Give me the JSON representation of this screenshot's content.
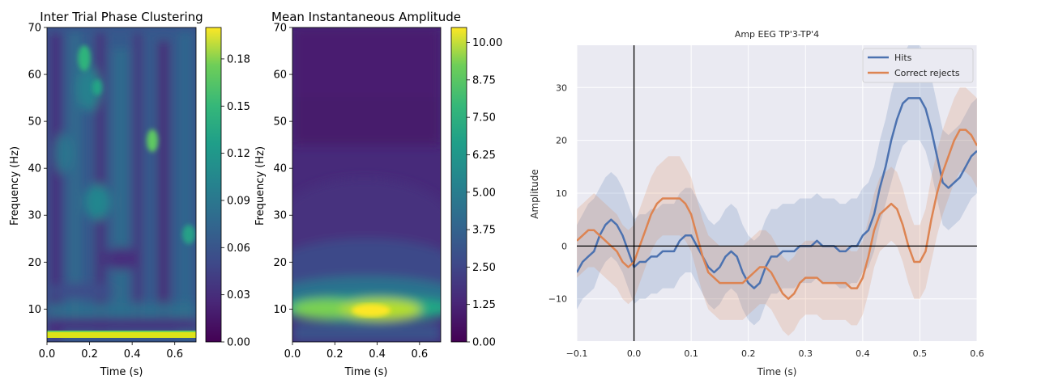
{
  "charts": [
    {
      "type": "heatmap",
      "title": "Inter Trial Phase Clustering",
      "xlabel": "Time (s)",
      "ylabel": "Frequency (Hz)",
      "xlim": [
        0.0,
        0.7
      ],
      "ylim": [
        3,
        70
      ],
      "xticks": [
        "0.0",
        "0.2",
        "0.4",
        "0.6"
      ],
      "yticks": [
        "10",
        "20",
        "30",
        "40",
        "50",
        "60",
        "70"
      ],
      "colorbar": {
        "range": [
          0.0,
          0.2
        ],
        "ticks": [
          "0.00",
          "0.03",
          "0.06",
          "0.09",
          "0.12",
          "0.15",
          "0.18"
        ]
      },
      "features": [
        {
          "t": 0.35,
          "f": 3.5,
          "value": 0.19
        },
        {
          "t": 0.5,
          "f": 46,
          "value": 0.14
        },
        {
          "t": 0.2,
          "f": 9,
          "value": 0.08
        },
        {
          "t": 0.1,
          "f": 18,
          "value": 0.06
        },
        {
          "t": 0.25,
          "f": 57,
          "value": 0.09
        }
      ]
    },
    {
      "type": "heatmap",
      "title": "Mean Instantaneous Amplitude",
      "xlabel": "Time (s)",
      "ylabel": "Frequency (Hz)",
      "xlim": [
        0.0,
        0.7
      ],
      "ylim": [
        3,
        70
      ],
      "xticks": [
        "0.0",
        "0.2",
        "0.4",
        "0.6"
      ],
      "yticks": [
        "10",
        "20",
        "30",
        "40",
        "50",
        "60",
        "70"
      ],
      "colorbar": {
        "range": [
          0.0,
          10.5
        ],
        "ticks": [
          "0.00",
          "1.25",
          "2.50",
          "3.75",
          "5.00",
          "6.25",
          "7.50",
          "8.75",
          "10.00"
        ]
      },
      "features": [
        {
          "t": 0.38,
          "f": 9.5,
          "value": 10.2
        },
        {
          "t": 0.1,
          "f": 10,
          "value": 6.5
        },
        {
          "t": 0.35,
          "f": 20,
          "value": 2.5
        },
        {
          "t": 0.35,
          "f": 50,
          "value": 0.6
        }
      ]
    },
    {
      "type": "line",
      "title": "Amp EEG TP'3-TP'4",
      "xlabel": "Time (s)",
      "ylabel": "Amplitude",
      "xlim": [
        -0.1,
        0.6
      ],
      "ylim": [
        -18,
        38
      ],
      "xticks": [
        "−0.1",
        "0.0",
        "0.1",
        "0.2",
        "0.3",
        "0.4",
        "0.5",
        "0.6"
      ],
      "yticks": [
        "−10",
        "0",
        "10",
        "20",
        "30"
      ],
      "grid": true,
      "legend_position": "top-right",
      "series": [
        {
          "name": "Hits",
          "color": "#4c72b0",
          "x": [
            -0.1,
            -0.09,
            -0.08,
            -0.07,
            -0.06,
            -0.05,
            -0.04,
            -0.03,
            -0.02,
            -0.01,
            0.0,
            0.01,
            0.02,
            0.03,
            0.04,
            0.05,
            0.06,
            0.07,
            0.08,
            0.09,
            0.1,
            0.11,
            0.12,
            0.13,
            0.14,
            0.15,
            0.16,
            0.17,
            0.18,
            0.19,
            0.2,
            0.21,
            0.22,
            0.23,
            0.24,
            0.25,
            0.26,
            0.27,
            0.28,
            0.29,
            0.3,
            0.31,
            0.32,
            0.33,
            0.34,
            0.35,
            0.36,
            0.37,
            0.38,
            0.39,
            0.4,
            0.41,
            0.42,
            0.43,
            0.44,
            0.45,
            0.46,
            0.47,
            0.48,
            0.49,
            0.5,
            0.51,
            0.52,
            0.53,
            0.54,
            0.55,
            0.56,
            0.57,
            0.58,
            0.59,
            0.6
          ],
          "y": [
            -5,
            -3,
            -2,
            -1,
            2,
            4,
            5,
            4,
            2,
            -1,
            -4,
            -3,
            -3,
            -2,
            -2,
            -1,
            -1,
            -1,
            1,
            2,
            2,
            0,
            -2,
            -4,
            -5,
            -4,
            -2,
            -1,
            -2,
            -5,
            -7,
            -8,
            -7,
            -4,
            -2,
            -2,
            -1,
            -1,
            -1,
            0,
            0,
            0,
            1,
            0,
            0,
            0,
            -1,
            -1,
            0,
            0,
            2,
            3,
            6,
            11,
            15,
            20,
            24,
            27,
            28,
            28,
            28,
            26,
            22,
            17,
            12,
            11,
            12,
            13,
            15,
            17,
            18
          ],
          "ci_upper": [
            4,
            6,
            8,
            9,
            11,
            13,
            14,
            13,
            11,
            8,
            5,
            6,
            6,
            7,
            7,
            8,
            8,
            8,
            10,
            11,
            11,
            9,
            7,
            5,
            4,
            5,
            7,
            8,
            7,
            4,
            2,
            1,
            2,
            5,
            7,
            7,
            8,
            8,
            8,
            9,
            9,
            9,
            10,
            9,
            9,
            9,
            8,
            8,
            9,
            9,
            11,
            12,
            15,
            20,
            24,
            29,
            33,
            36,
            38,
            38,
            38,
            36,
            32,
            27,
            22,
            21,
            22,
            23,
            25,
            27,
            28
          ],
          "ci_lower": [
            -12,
            -10,
            -9,
            -8,
            -5,
            -3,
            -2,
            -3,
            -5,
            -8,
            -11,
            -10,
            -10,
            -9,
            -9,
            -8,
            -8,
            -8,
            -6,
            -5,
            -5,
            -7,
            -9,
            -11,
            -12,
            -11,
            -9,
            -8,
            -9,
            -12,
            -14,
            -15,
            -14,
            -11,
            -9,
            -9,
            -8,
            -8,
            -8,
            -7,
            -7,
            -7,
            -6,
            -7,
            -7,
            -7,
            -8,
            -8,
            -7,
            -7,
            -5,
            -4,
            -1,
            4,
            8,
            12,
            16,
            19,
            20,
            20,
            20,
            18,
            14,
            9,
            4,
            3,
            4,
            5,
            7,
            9,
            10
          ]
        },
        {
          "name": "Correct rejects",
          "color": "#dd8452",
          "x": [
            -0.1,
            -0.09,
            -0.08,
            -0.07,
            -0.06,
            -0.05,
            -0.04,
            -0.03,
            -0.02,
            -0.01,
            0.0,
            0.01,
            0.02,
            0.03,
            0.04,
            0.05,
            0.06,
            0.07,
            0.08,
            0.09,
            0.1,
            0.11,
            0.12,
            0.13,
            0.14,
            0.15,
            0.16,
            0.17,
            0.18,
            0.19,
            0.2,
            0.21,
            0.22,
            0.23,
            0.24,
            0.25,
            0.26,
            0.27,
            0.28,
            0.29,
            0.3,
            0.31,
            0.32,
            0.33,
            0.34,
            0.35,
            0.36,
            0.37,
            0.38,
            0.39,
            0.4,
            0.41,
            0.42,
            0.43,
            0.44,
            0.45,
            0.46,
            0.47,
            0.48,
            0.49,
            0.5,
            0.51,
            0.52,
            0.53,
            0.54,
            0.55,
            0.56,
            0.57,
            0.58,
            0.59,
            0.6
          ],
          "y": [
            1,
            2,
            3,
            3,
            2,
            1,
            0,
            -1,
            -3,
            -4,
            -3,
            0,
            3,
            6,
            8,
            9,
            9,
            9,
            9,
            8,
            6,
            2,
            -2,
            -5,
            -6,
            -7,
            -7,
            -7,
            -7,
            -7,
            -6,
            -5,
            -4,
            -4,
            -5,
            -7,
            -9,
            -10,
            -9,
            -7,
            -6,
            -6,
            -6,
            -7,
            -7,
            -7,
            -7,
            -7,
            -8,
            -8,
            -6,
            -2,
            3,
            6,
            7,
            8,
            7,
            4,
            0,
            -3,
            -3,
            -1,
            5,
            10,
            14,
            17,
            20,
            22,
            22,
            21,
            19
          ],
          "ci_upper": [
            7,
            8,
            9,
            10,
            9,
            8,
            7,
            6,
            4,
            3,
            4,
            7,
            10,
            13,
            15,
            16,
            17,
            17,
            17,
            15,
            13,
            9,
            5,
            2,
            1,
            0,
            0,
            0,
            0,
            0,
            1,
            2,
            3,
            3,
            2,
            0,
            -2,
            -3,
            -2,
            0,
            1,
            1,
            1,
            0,
            0,
            0,
            0,
            0,
            -1,
            -1,
            1,
            5,
            10,
            13,
            14,
            15,
            14,
            11,
            7,
            4,
            4,
            7,
            13,
            18,
            22,
            25,
            28,
            30,
            30,
            29,
            28
          ],
          "ci_lower": [
            -6,
            -5,
            -4,
            -4,
            -5,
            -6,
            -7,
            -8,
            -10,
            -11,
            -10,
            -7,
            -4,
            -1,
            1,
            2,
            2,
            2,
            2,
            1,
            -1,
            -5,
            -9,
            -12,
            -13,
            -14,
            -14,
            -14,
            -14,
            -14,
            -13,
            -12,
            -11,
            -11,
            -12,
            -14,
            -16,
            -17,
            -16,
            -14,
            -13,
            -13,
            -13,
            -14,
            -14,
            -14,
            -14,
            -14,
            -15,
            -15,
            -13,
            -9,
            -4,
            -1,
            0,
            1,
            0,
            -3,
            -7,
            -10,
            -10,
            -8,
            -3,
            2,
            6,
            9,
            12,
            14,
            14,
            13,
            11
          ]
        }
      ]
    }
  ]
}
